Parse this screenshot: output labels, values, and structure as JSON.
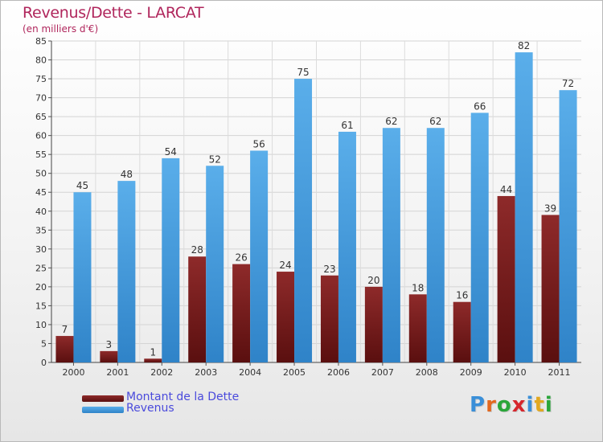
{
  "header": {
    "title": "Revenus/Dette - LARCAT",
    "subtitle": "(en milliers d'€)"
  },
  "chart_data": {
    "type": "bar",
    "title": "Revenus/Dette - LARCAT",
    "subtitle": "(en milliers d'€)",
    "categories": [
      "2000",
      "2001",
      "2002",
      "2003",
      "2004",
      "2005",
      "2006",
      "2007",
      "2008",
      "2009",
      "2010",
      "2011"
    ],
    "series": [
      {
        "name": "Montant de la Dette",
        "values": [
          7,
          3,
          1,
          28,
          26,
          24,
          23,
          20,
          18,
          16,
          44,
          39
        ],
        "color": "#7a1c1c"
      },
      {
        "name": "Revenus",
        "values": [
          45,
          48,
          54,
          52,
          56,
          75,
          61,
          62,
          62,
          66,
          82,
          72
        ],
        "color": "#4a9fe0"
      }
    ],
    "ylim": [
      0,
      85
    ],
    "yticks": [
      0,
      5,
      10,
      15,
      20,
      25,
      30,
      35,
      40,
      45,
      50,
      55,
      60,
      65,
      70,
      75,
      80,
      85
    ],
    "grid": true,
    "legend": "bottom-left"
  },
  "legend": {
    "items": [
      {
        "label": "Montant de la Dette",
        "color": "#7a1c1c"
      },
      {
        "label": "Revenus",
        "color": "#4a9fe0"
      }
    ]
  },
  "logo": {
    "letters": [
      "P",
      "r",
      "o",
      "x",
      "i",
      "t",
      "i"
    ],
    "colors": [
      "#3a8fd8",
      "#e2681f",
      "#2aa63a",
      "#d6262d",
      "#3a8fd8",
      "#e2a81f",
      "#2aa63a"
    ]
  }
}
